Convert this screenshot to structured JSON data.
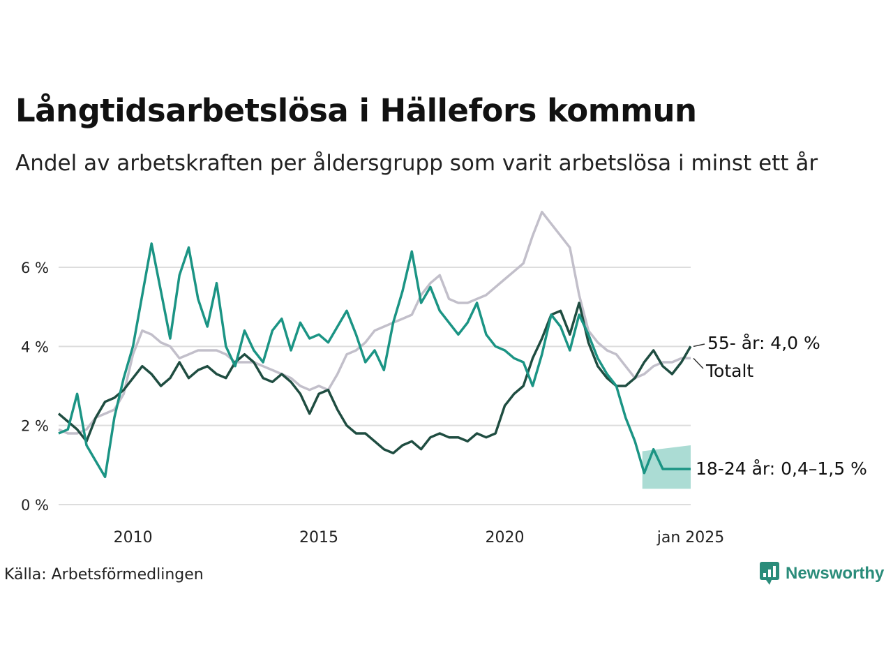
{
  "header": {
    "title": "Långtidsarbetslösa i Hällefors kommun",
    "subtitle": "Andel av arbetskraften per åldersgrupp som varit arbetslösa i minst ett år"
  },
  "footer": {
    "source": "Källa: Arbetsförmedlingen",
    "brand": "Newsworthy"
  },
  "chart_data": {
    "type": "line",
    "title": "Långtidsarbetslösa i Hällefors kommun",
    "ylim": [
      0,
      7.5
    ],
    "xlim": [
      2008.0,
      2025.0
    ],
    "yticks": [
      {
        "value": 0,
        "label": "0 %"
      },
      {
        "value": 2,
        "label": "2 %"
      },
      {
        "value": 4,
        "label": "4 %"
      },
      {
        "value": 6,
        "label": "6 %"
      }
    ],
    "xticks": [
      {
        "value": 2010,
        "label": "2010"
      },
      {
        "value": 2015,
        "label": "2015"
      },
      {
        "value": 2020,
        "label": "2020"
      },
      {
        "value": 2025,
        "label": "jan 2025"
      }
    ],
    "grid": true,
    "colors": {
      "total": "#c2bfca",
      "age55": "#1f4d41",
      "age18_24": "#1b9484",
      "band": "#a2d8cf",
      "grid": "#dddddd"
    },
    "series": [
      {
        "name": "Totalt",
        "label": "Totalt",
        "x": [
          2008.0,
          2008.25,
          2008.5,
          2008.75,
          2009.0,
          2009.25,
          2009.5,
          2009.75,
          2010.0,
          2010.25,
          2010.5,
          2010.75,
          2011.0,
          2011.25,
          2011.5,
          2011.75,
          2012.0,
          2012.25,
          2012.5,
          2012.75,
          2013.0,
          2013.25,
          2013.5,
          2013.75,
          2014.0,
          2014.25,
          2014.5,
          2014.75,
          2015.0,
          2015.25,
          2015.5,
          2015.75,
          2016.0,
          2016.25,
          2016.5,
          2016.75,
          2017.0,
          2017.25,
          2017.5,
          2017.75,
          2018.0,
          2018.25,
          2018.5,
          2018.75,
          2019.0,
          2019.25,
          2019.5,
          2019.75,
          2020.0,
          2020.25,
          2020.5,
          2020.75,
          2021.0,
          2021.25,
          2021.5,
          2021.75,
          2022.0,
          2022.25,
          2022.5,
          2022.75,
          2023.0,
          2023.25,
          2023.5,
          2023.75,
          2024.0,
          2024.25,
          2024.5,
          2024.75,
          2025.0
        ],
        "y": [
          1.9,
          1.8,
          1.8,
          1.9,
          2.2,
          2.3,
          2.4,
          2.8,
          3.8,
          4.4,
          4.3,
          4.1,
          4.0,
          3.7,
          3.8,
          3.9,
          3.9,
          3.9,
          3.8,
          3.6,
          3.6,
          3.6,
          3.5,
          3.4,
          3.3,
          3.2,
          3.0,
          2.9,
          3.0,
          2.9,
          3.3,
          3.8,
          3.9,
          4.1,
          4.4,
          4.5,
          4.6,
          4.7,
          4.8,
          5.3,
          5.6,
          5.8,
          5.2,
          5.1,
          5.1,
          5.2,
          5.3,
          5.5,
          5.7,
          5.9,
          6.1,
          6.8,
          7.4,
          7.1,
          6.8,
          6.5,
          5.3,
          4.4,
          4.1,
          3.9,
          3.8,
          3.5,
          3.2,
          3.3,
          3.5,
          3.6,
          3.6,
          3.7,
          3.7
        ]
      },
      {
        "name": "55- år",
        "label": "55- år: 4,0 %",
        "x": [
          2008.0,
          2008.25,
          2008.5,
          2008.75,
          2009.0,
          2009.25,
          2009.5,
          2009.75,
          2010.0,
          2010.25,
          2010.5,
          2010.75,
          2011.0,
          2011.25,
          2011.5,
          2011.75,
          2012.0,
          2012.25,
          2012.5,
          2012.75,
          2013.0,
          2013.25,
          2013.5,
          2013.75,
          2014.0,
          2014.25,
          2014.5,
          2014.75,
          2015.0,
          2015.25,
          2015.5,
          2015.75,
          2016.0,
          2016.25,
          2016.5,
          2016.75,
          2017.0,
          2017.25,
          2017.5,
          2017.75,
          2018.0,
          2018.25,
          2018.5,
          2018.75,
          2019.0,
          2019.25,
          2019.5,
          2019.75,
          2020.0,
          2020.25,
          2020.5,
          2020.75,
          2021.0,
          2021.25,
          2021.5,
          2021.75,
          2022.0,
          2022.25,
          2022.5,
          2022.75,
          2023.0,
          2023.25,
          2023.5,
          2023.75,
          2024.0,
          2024.25,
          2024.5,
          2024.75,
          2025.0
        ],
        "y": [
          2.3,
          2.1,
          1.9,
          1.6,
          2.2,
          2.6,
          2.7,
          2.9,
          3.2,
          3.5,
          3.3,
          3.0,
          3.2,
          3.6,
          3.2,
          3.4,
          3.5,
          3.3,
          3.2,
          3.6,
          3.8,
          3.6,
          3.2,
          3.1,
          3.3,
          3.1,
          2.8,
          2.3,
          2.8,
          2.9,
          2.4,
          2.0,
          1.8,
          1.8,
          1.6,
          1.4,
          1.3,
          1.5,
          1.6,
          1.4,
          1.7,
          1.8,
          1.7,
          1.7,
          1.6,
          1.8,
          1.7,
          1.8,
          2.5,
          2.8,
          3.0,
          3.7,
          4.2,
          4.8,
          4.9,
          4.3,
          5.1,
          4.1,
          3.5,
          3.2,
          3.0,
          3.0,
          3.2,
          3.6,
          3.9,
          3.5,
          3.3,
          3.6,
          4.0
        ]
      },
      {
        "name": "18-24 år",
        "label": "18-24 år: 0,4–1,5 %",
        "x": [
          2008.0,
          2008.25,
          2008.5,
          2008.75,
          2009.0,
          2009.25,
          2009.5,
          2009.75,
          2010.0,
          2010.25,
          2010.5,
          2010.75,
          2011.0,
          2011.25,
          2011.5,
          2011.75,
          2012.0,
          2012.25,
          2012.5,
          2012.75,
          2013.0,
          2013.25,
          2013.5,
          2013.75,
          2014.0,
          2014.25,
          2014.5,
          2014.75,
          2015.0,
          2015.25,
          2015.5,
          2015.75,
          2016.0,
          2016.25,
          2016.5,
          2016.75,
          2017.0,
          2017.25,
          2017.5,
          2017.75,
          2018.0,
          2018.25,
          2018.5,
          2018.75,
          2019.0,
          2019.25,
          2019.5,
          2019.75,
          2020.0,
          2020.25,
          2020.5,
          2020.75,
          2021.0,
          2021.25,
          2021.5,
          2021.75,
          2022.0,
          2022.25,
          2022.5,
          2022.75,
          2023.0,
          2023.25,
          2023.5,
          2023.75,
          2024.0,
          2024.25,
          2024.5,
          2024.75,
          2025.0
        ],
        "y": [
          1.8,
          1.9,
          2.8,
          1.5,
          1.1,
          0.7,
          2.2,
          3.2,
          4.0,
          5.3,
          6.6,
          5.4,
          4.2,
          5.8,
          6.5,
          5.2,
          4.5,
          5.6,
          4.0,
          3.5,
          4.4,
          3.9,
          3.6,
          4.4,
          4.7,
          3.9,
          4.6,
          4.2,
          4.3,
          4.1,
          4.5,
          4.9,
          4.3,
          3.6,
          3.9,
          3.4,
          4.6,
          5.4,
          6.4,
          5.1,
          5.5,
          4.9,
          4.6,
          4.3,
          4.6,
          5.1,
          4.3,
          4.0,
          3.9,
          3.7,
          3.6,
          3.0,
          3.8,
          4.8,
          4.5,
          3.9,
          4.8,
          4.3,
          3.7,
          3.3,
          3.0,
          2.2,
          1.6,
          0.8,
          1.4,
          0.9,
          0.9,
          0.9,
          0.9
        ]
      }
    ],
    "band": {
      "series": "18-24 år",
      "x_start": 2023.7,
      "low": 0.4,
      "high": 1.5
    }
  }
}
